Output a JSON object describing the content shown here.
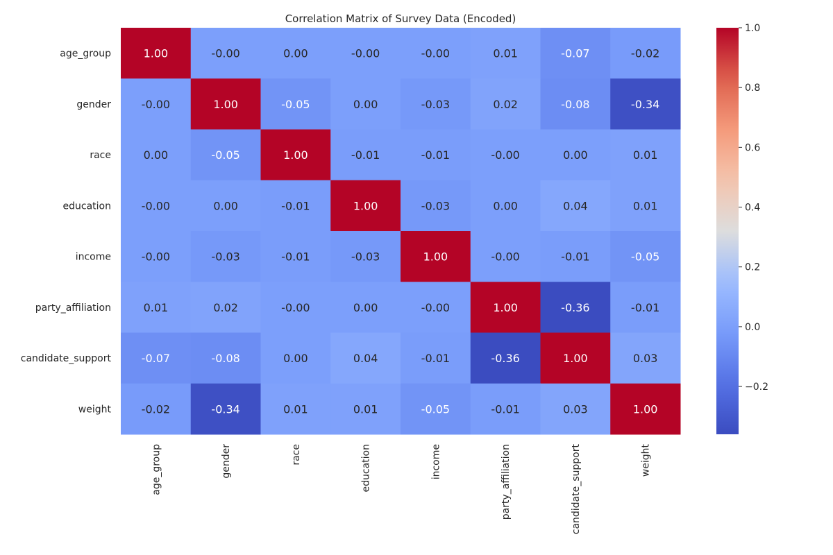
{
  "chart_data": {
    "type": "heatmap",
    "title": "Correlation Matrix of Survey Data (Encoded)",
    "xlabel": "",
    "ylabel": "",
    "variables": [
      "age_group",
      "gender",
      "race",
      "education",
      "income",
      "party_affiliation",
      "candidate_support",
      "weight"
    ],
    "values": [
      [
        1.0,
        -0.0,
        0.0,
        -0.0,
        -0.0,
        0.01,
        -0.07,
        -0.02
      ],
      [
        -0.0,
        1.0,
        -0.05,
        0.0,
        -0.03,
        0.02,
        -0.08,
        -0.34
      ],
      [
        0.0,
        -0.05,
        1.0,
        -0.01,
        -0.01,
        -0.0,
        0.0,
        0.01
      ],
      [
        -0.0,
        0.0,
        -0.01,
        1.0,
        -0.03,
        0.0,
        0.04,
        0.01
      ],
      [
        -0.0,
        -0.03,
        -0.01,
        -0.03,
        1.0,
        -0.0,
        -0.01,
        -0.05
      ],
      [
        0.01,
        0.02,
        -0.0,
        0.0,
        -0.0,
        1.0,
        -0.36,
        -0.01
      ],
      [
        -0.07,
        -0.08,
        0.0,
        0.04,
        -0.01,
        -0.36,
        1.0,
        0.03
      ],
      [
        -0.02,
        -0.34,
        0.01,
        0.01,
        -0.05,
        -0.01,
        0.03,
        1.0
      ]
    ],
    "cell_labels": [
      [
        "1.00",
        "-0.00",
        "0.00",
        "-0.00",
        "-0.00",
        "0.01",
        "-0.07",
        "-0.02"
      ],
      [
        "-0.00",
        "1.00",
        "-0.05",
        "0.00",
        "-0.03",
        "0.02",
        "-0.08",
        "-0.34"
      ],
      [
        "0.00",
        "-0.05",
        "1.00",
        "-0.01",
        "-0.01",
        "-0.00",
        "0.00",
        "0.01"
      ],
      [
        "-0.00",
        "0.00",
        "-0.01",
        "1.00",
        "-0.03",
        "0.00",
        "0.04",
        "0.01"
      ],
      [
        "-0.00",
        "-0.03",
        "-0.01",
        "-0.03",
        "1.00",
        "-0.00",
        "-0.01",
        "-0.05"
      ],
      [
        "0.01",
        "0.02",
        "-0.00",
        "0.00",
        "-0.00",
        "1.00",
        "-0.36",
        "-0.01"
      ],
      [
        "-0.07",
        "-0.08",
        "0.00",
        "0.04",
        "-0.01",
        "-0.36",
        "1.00",
        "0.03"
      ],
      [
        "-0.02",
        "-0.34",
        "0.01",
        "0.01",
        "-0.05",
        "-0.01",
        "0.03",
        "1.00"
      ]
    ],
    "colormap": "coolwarm",
    "vmin": -0.36,
    "vmax": 1.0,
    "colorbar_ticks": [
      1.0,
      0.8,
      0.6,
      0.4,
      0.2,
      0.0,
      -0.2
    ],
    "colorbar_tick_labels": [
      "1.0",
      "0.8",
      "0.6",
      "0.4",
      "0.2",
      "0.0",
      "−0.2"
    ],
    "grid": false,
    "legend": "colorbar-right"
  }
}
